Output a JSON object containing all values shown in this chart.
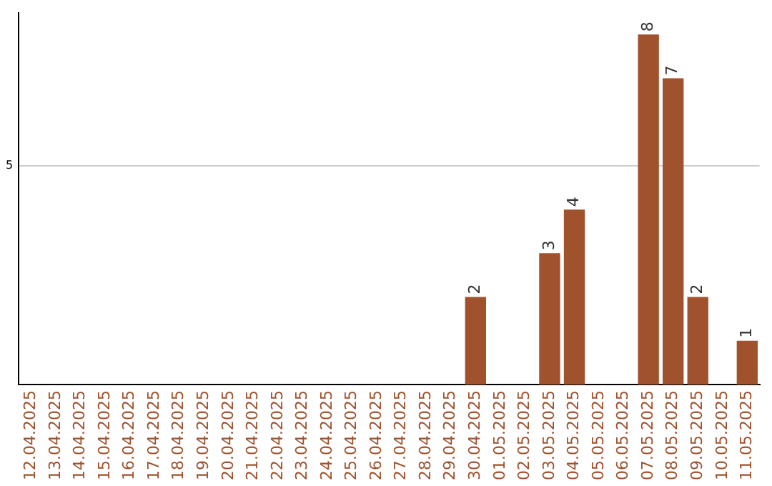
{
  "chart_data": {
    "type": "bar",
    "categories": [
      "12.04.2025",
      "13.04.2025",
      "14.04.2025",
      "15.04.2025",
      "16.04.2025",
      "17.04.2025",
      "18.04.2025",
      "19.04.2025",
      "20.04.2025",
      "21.04.2025",
      "22.04.2025",
      "23.04.2025",
      "24.04.2025",
      "25.04.2025",
      "26.04.2025",
      "27.04.2025",
      "28.04.2025",
      "29.04.2025",
      "30.04.2025",
      "01.05.2025",
      "02.05.2025",
      "03.05.2025",
      "04.05.2025",
      "05.05.2025",
      "06.05.2025",
      "07.05.2025",
      "08.05.2025",
      "09.05.2025",
      "10.05.2025",
      "11.05.2025"
    ],
    "values": [
      null,
      null,
      null,
      null,
      null,
      null,
      null,
      null,
      null,
      null,
      null,
      null,
      null,
      null,
      null,
      null,
      null,
      null,
      2,
      null,
      null,
      3,
      4,
      null,
      null,
      8,
      7,
      2,
      null,
      1
    ],
    "color": "#a0522d",
    "ylim": [
      0,
      8.5
    ],
    "yticks": [
      5
    ],
    "grid": "y",
    "data_labels": true,
    "legend": false
  }
}
